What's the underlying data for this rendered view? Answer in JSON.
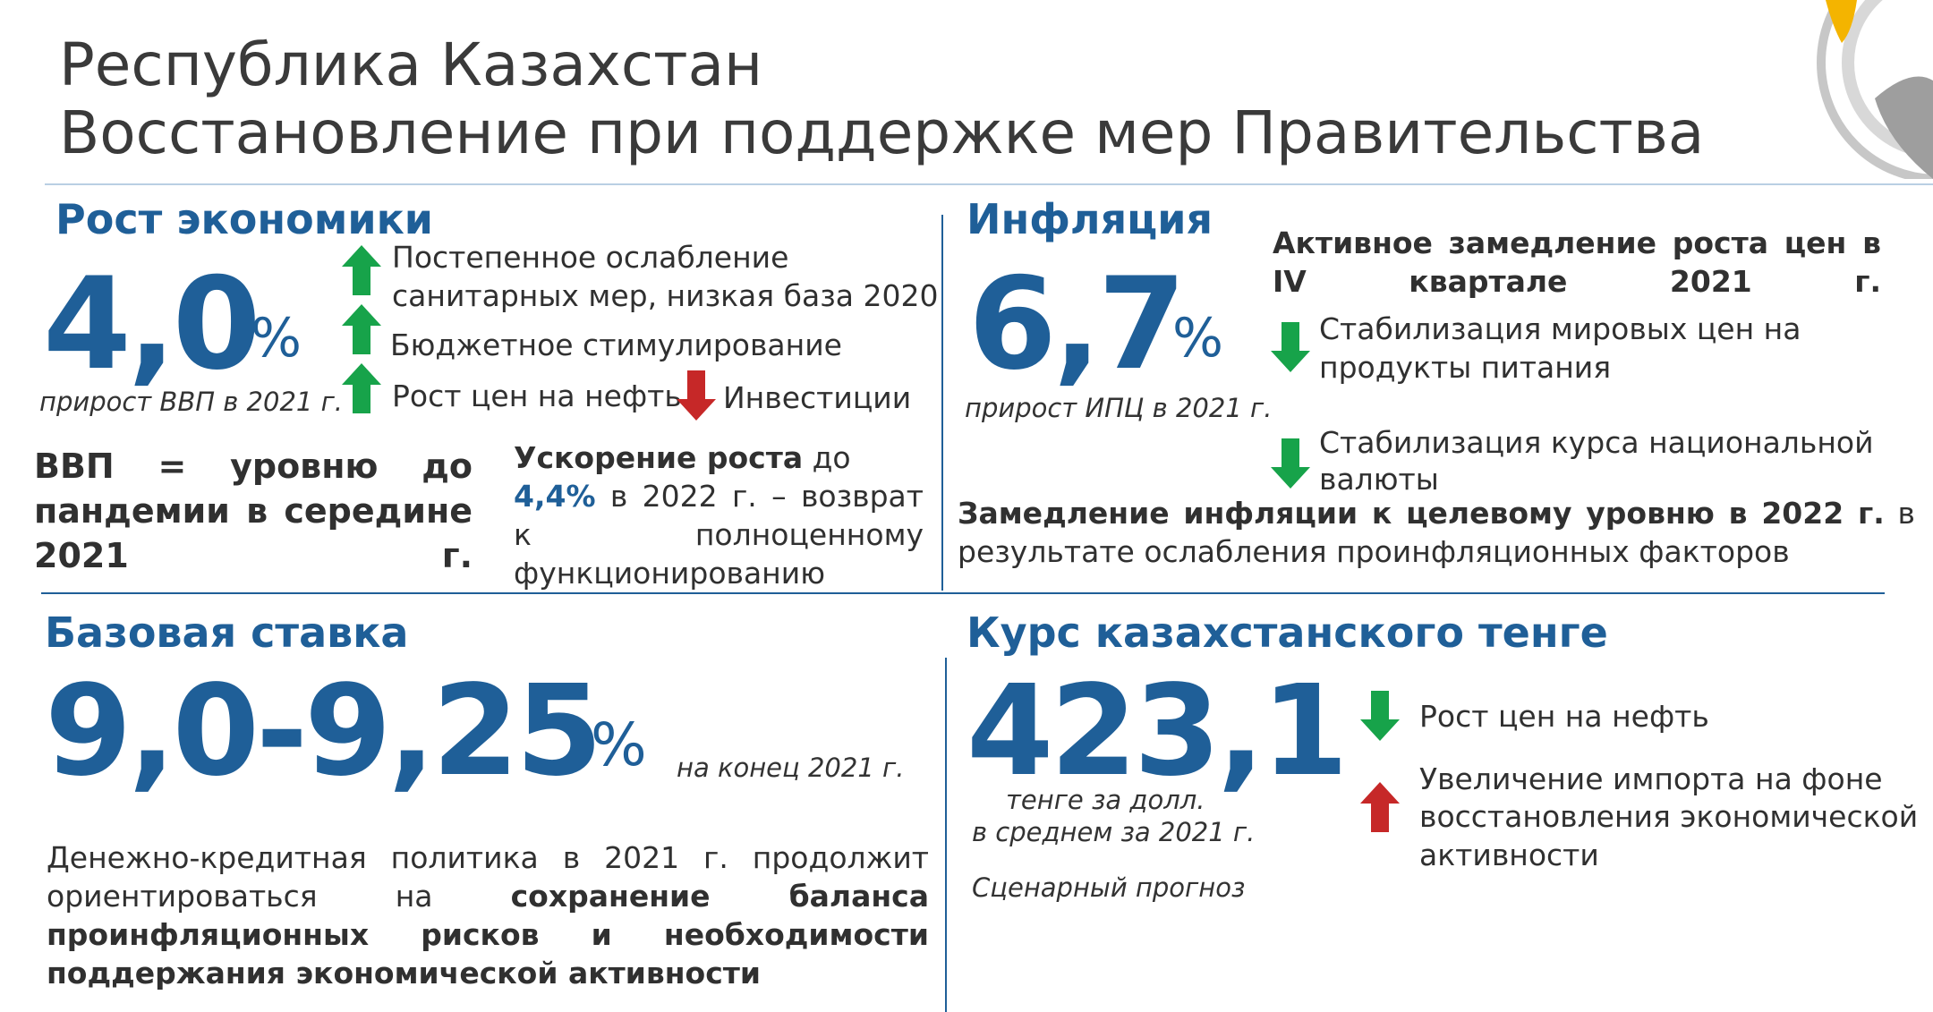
{
  "header": {
    "title_line1": "Республика Казахстан",
    "title_line2": "Восстановление при поддержке мер Правительства"
  },
  "colors": {
    "brand_blue": "#1f5f98",
    "arrow_up": "#17a34a",
    "arrow_down_green": "#17a34a",
    "arrow_down_red": "#c62828",
    "logo_gold": "#f4b400",
    "logo_gray": "#c7c7c7"
  },
  "growth": {
    "heading": "Рост экономики",
    "value": "4,0",
    "unit": "%",
    "caption": "прирост ВВП в 2021 г.",
    "factor1_line1": "Постепенное ослабление",
    "factor1_line2": "санитарных мер, низкая база 2020",
    "factor2": "Бюджетное стимулирование",
    "factor3": "Рост цен на нефть",
    "factor4": "Инвестиции",
    "gdp_text": "ВВП = уровню до пандемии в середине 2021 г.",
    "accel_bold": "Ускорение роста",
    "accel_rest1": " до",
    "accel_value": "4,4%",
    "accel_rest2": " в 2022 г. – возврат к полноценному функционированию"
  },
  "inflation": {
    "heading": "Инфляция",
    "value": "6,7",
    "unit": "%",
    "caption": "прирост ИПЦ в 2021 г.",
    "headline": "Активное замедление роста цен в IV квартале 2021 г.",
    "factor1_line1": "Стабилизация мировых цен на",
    "factor1_line2": "продукты питания",
    "factor2_line1": "Стабилизация курса национальной",
    "factor2_line2": "валюты",
    "outlook_bold": "Замедление инфляции к целевому уровню в 2022 г.",
    "outlook_rest": " в результате ослабления проинфляционных факторов"
  },
  "rate": {
    "heading": "Базовая ставка",
    "value": "9,0-9,25",
    "unit": "%",
    "caption": "на конец 2021 г.",
    "policy_normal": "Денежно-кредитная политика в 2021 г. продолжит ориентироваться на ",
    "policy_bold": "сохранение баланса проинфляционных рисков и необходимости поддержания экономической активности"
  },
  "tenge": {
    "heading": "Курс казахстанского тенге",
    "value": "423,1",
    "caption_line1": "тенге за долл.",
    "caption_line2": "в среднем за 2021 г.",
    "scenario": "Сценарный прогноз",
    "factor1": "Рост цен на нефть",
    "factor2_line1": "Увеличение импорта на фоне",
    "factor2_line2": "восстановления экономической",
    "factor2_line3": "активности"
  },
  "icons": {
    "up": "arrow-up-icon",
    "down": "arrow-down-icon",
    "logo": "logo-icon"
  }
}
